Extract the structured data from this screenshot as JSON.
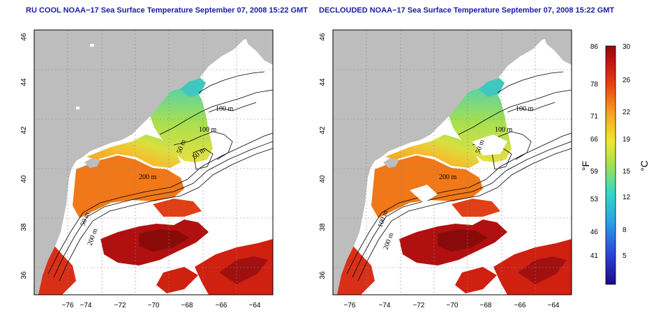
{
  "panels": {
    "left": {
      "title": "RU COOL NOAA−17 Sea Surface Temperature September 07, 2008 15:22 GMT",
      "contour_labels": [
        "100 m",
        "100 m",
        "50 m",
        "50 m",
        "200 m",
        "50 m",
        "200 m"
      ]
    },
    "right": {
      "title": "DECLOUDED NOAA−17 Sea Surface Temperature September 07, 2008 15:22 GMT",
      "contour_labels": [
        "100 m",
        "100 m",
        "50 m",
        "200 m",
        "100 m",
        "200 m"
      ]
    }
  },
  "axes": {
    "lat_ticks": [
      "46",
      "44",
      "42",
      "40",
      "38",
      "36"
    ],
    "lon_ticks": [
      "−76",
      "−74",
      "−72",
      "−70",
      "−68",
      "−66",
      "−64"
    ]
  },
  "colorbar": {
    "fahrenheit_label": "°F",
    "celsius_label": "°C",
    "fahrenheit_ticks": [
      "86",
      "78",
      "71",
      "66",
      "59",
      "53",
      "46",
      "41"
    ],
    "celsius_ticks": [
      "30",
      "26",
      "22",
      "19",
      "15",
      "12",
      "8",
      "5"
    ],
    "colors": {
      "land": "#bdbdbd",
      "cloud": "#ffffff",
      "warm": "#c01010",
      "cool": "#3030d0"
    }
  }
}
